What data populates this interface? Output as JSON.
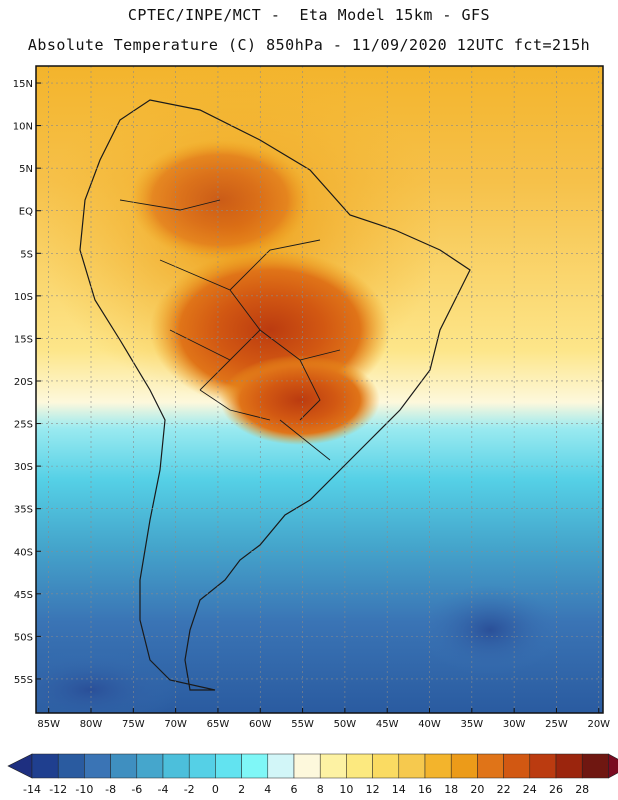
{
  "header": {
    "line1": "CPTEC/INPE/MCT -  Eta Model 15km - GFS",
    "line2": "Absolute Temperature (C) 850hPa - 11/09/2020 12UTC fct=215h"
  },
  "map": {
    "lat_labels": [
      "15N",
      "10N",
      "5N",
      "EQ",
      "5S",
      "10S",
      "15S",
      "20S",
      "25S",
      "30S",
      "35S",
      "40S",
      "45S",
      "50S",
      "55S"
    ],
    "lon_labels": [
      "85W",
      "80W",
      "75W",
      "70W",
      "65W",
      "60W",
      "55W",
      "50W",
      "45W",
      "40W",
      "35W",
      "30W",
      "25W",
      "20W"
    ]
  },
  "colorbar": {
    "labels": [
      "-14",
      "-12",
      "-10",
      "-8",
      "-6",
      "-4",
      "-2",
      "0",
      "2",
      "4",
      "6",
      "8",
      "10",
      "12",
      "14",
      "16",
      "18",
      "20",
      "22",
      "24",
      "26",
      "28"
    ],
    "colors": [
      "#1f3f8f",
      "#2a5ba0",
      "#3a74b5",
      "#3f8fc0",
      "#45a6cc",
      "#4cbfdb",
      "#55d0e6",
      "#62e3f0",
      "#7ff7f7",
      "#d2f6f8",
      "#fdf8dc",
      "#fdf2a3",
      "#fce97f",
      "#fadb62",
      "#f6c94e",
      "#f3b42c",
      "#ec9b19",
      "#e07418",
      "#d25812",
      "#bb3b10",
      "#9b250d",
      "#6f1711"
    ],
    "under_color": "#1e2f80",
    "over_color": "#7a0a20"
  }
}
